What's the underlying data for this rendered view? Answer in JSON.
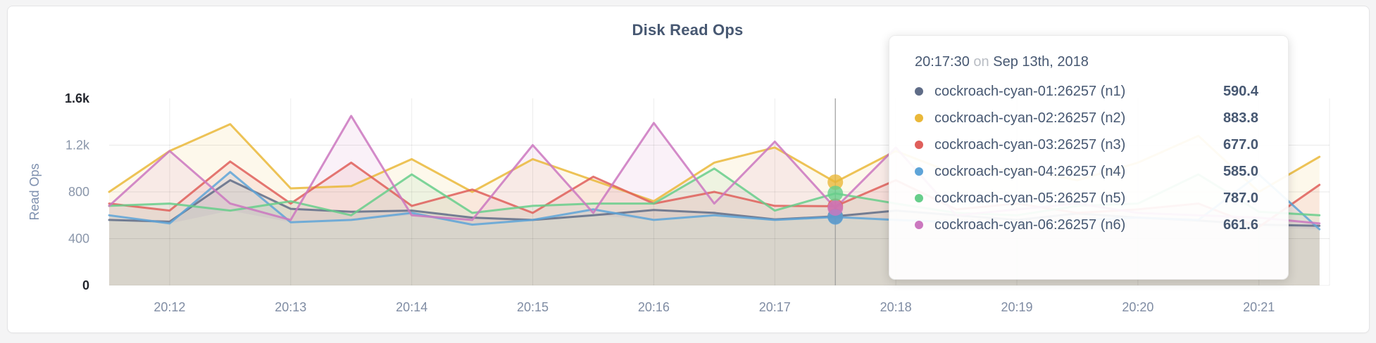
{
  "page": {
    "background": "#f4f4f5",
    "card_background": "#ffffff"
  },
  "chart_data": {
    "type": "line",
    "title": "Disk Read Ops",
    "ylabel": "Read Ops",
    "xlabel": "",
    "ylim": [
      0,
      1600
    ],
    "grid": true,
    "legend_position": "tooltip",
    "x_range": [
      "20:11:30",
      "20:21:35"
    ],
    "x": [
      "20:11:30",
      "20:12:00",
      "20:12:30",
      "20:13:00",
      "20:13:30",
      "20:14:00",
      "20:14:30",
      "20:15:00",
      "20:15:30",
      "20:16:00",
      "20:16:30",
      "20:17:00",
      "20:17:30",
      "20:18:00",
      "20:18:30",
      "20:19:00",
      "20:19:30",
      "20:20:00",
      "20:20:30",
      "20:21:00",
      "20:21:30"
    ],
    "series": [
      {
        "name": "cockroach-cyan-01:26257 (n1)",
        "color": "#5f6c87",
        "values": [
          560,
          545,
          900,
          655,
          630,
          640,
          580,
          560,
          600,
          645,
          620,
          565,
          590.4,
          640,
          600,
          560,
          615,
          580,
          555,
          520,
          510
        ]
      },
      {
        "name": "cockroach-cyan-02:26257 (n2)",
        "color": "#eab839",
        "values": [
          800,
          1150,
          1380,
          830,
          850,
          1080,
          800,
          1080,
          900,
          720,
          1050,
          1180,
          883.8,
          1150,
          950,
          1000,
          900,
          1050,
          1280,
          800,
          1100
        ]
      },
      {
        "name": "cockroach-cyan-03:26257 (n3)",
        "color": "#df5f5b",
        "values": [
          700,
          640,
          1060,
          700,
          1050,
          680,
          820,
          620,
          930,
          700,
          800,
          680,
          677,
          900,
          650,
          700,
          620,
          650,
          700,
          500,
          860
        ]
      },
      {
        "name": "cockroach-cyan-04:26257 (n4)",
        "color": "#5ea4d8",
        "values": [
          600,
          530,
          970,
          540,
          560,
          620,
          520,
          560,
          650,
          560,
          600,
          560,
          585,
          560,
          540,
          520,
          560,
          580,
          560,
          950,
          480
        ]
      },
      {
        "name": "cockroach-cyan-05:26257 (n5)",
        "color": "#67ce8b",
        "values": [
          680,
          700,
          640,
          720,
          600,
          950,
          620,
          680,
          700,
          700,
          1000,
          640,
          787,
          700,
          620,
          600,
          680,
          700,
          950,
          630,
          600
        ]
      },
      {
        "name": "cockroach-cyan-06:26257 (n6)",
        "color": "#cb77bf",
        "values": [
          680,
          1150,
          700,
          560,
          1450,
          600,
          560,
          1200,
          620,
          1390,
          700,
          1230,
          661.6,
          1180,
          600,
          650,
          700,
          620,
          600,
          580,
          530
        ]
      }
    ],
    "yticks": [
      {
        "label": "1.6k",
        "value": 1600,
        "emphasis": true
      },
      {
        "label": "1.2k",
        "value": 1200,
        "emphasis": false
      },
      {
        "label": "800",
        "value": 800,
        "emphasis": false
      },
      {
        "label": "400",
        "value": 400,
        "emphasis": false
      },
      {
        "label": "0",
        "value": 0,
        "emphasis": true
      }
    ],
    "xticks": [
      {
        "label": "20:12",
        "time": "20:12:00"
      },
      {
        "label": "20:13",
        "time": "20:13:00"
      },
      {
        "label": "20:14",
        "time": "20:14:00"
      },
      {
        "label": "20:15",
        "time": "20:15:00"
      },
      {
        "label": "20:16",
        "time": "20:16:00"
      },
      {
        "label": "20:17",
        "time": "20:17:00"
      },
      {
        "label": "20:18",
        "time": "20:18:00"
      },
      {
        "label": "20:19",
        "time": "20:19:00"
      },
      {
        "label": "20:20",
        "time": "20:20:00"
      },
      {
        "label": "20:21",
        "time": "20:21:00"
      }
    ],
    "hover_time": "20:17:30",
    "area_base_color": "#d8d4cb"
  },
  "tooltip": {
    "time": "20:17:30",
    "preposition": "on",
    "date": "Sep 13th, 2018",
    "rows": [
      {
        "name": "cockroach-cyan-01:26257 (n1)",
        "value": "590.4",
        "color": "#5f6c87"
      },
      {
        "name": "cockroach-cyan-02:26257 (n2)",
        "value": "883.8",
        "color": "#eab839"
      },
      {
        "name": "cockroach-cyan-03:26257 (n3)",
        "value": "677.0",
        "color": "#df5f5b"
      },
      {
        "name": "cockroach-cyan-04:26257 (n4)",
        "value": "585.0",
        "color": "#5ea4d8"
      },
      {
        "name": "cockroach-cyan-05:26257 (n5)",
        "value": "787.0",
        "color": "#67ce8b"
      },
      {
        "name": "cockroach-cyan-06:26257 (n6)",
        "value": "661.6",
        "color": "#cb77bf"
      }
    ]
  }
}
